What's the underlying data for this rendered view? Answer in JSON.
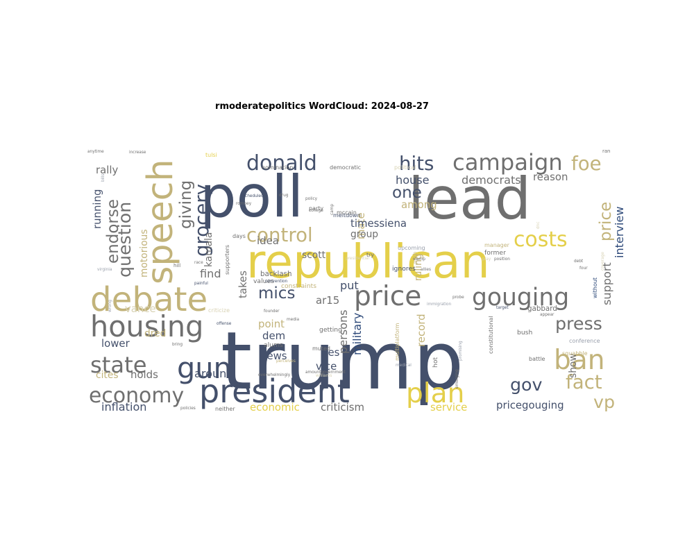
{
  "chart_data": {
    "type": "wordcloud",
    "title": "rmoderatepolitics WordCloud: 2024-08-27",
    "palette": {
      "navy": "#44506b",
      "blue": "#2e4a7a",
      "gray": "#6f6f6f",
      "khaki": "#c2b37a",
      "yellow": "#e4cf4a",
      "pale": "#d8d2b4",
      "light": "#9aa0ac"
    },
    "words": [
      {
        "text": "trump",
        "weight": 100,
        "color": "navy"
      },
      {
        "text": "poll",
        "weight": 72,
        "color": "navy"
      },
      {
        "text": "lead",
        "weight": 72,
        "color": "gray"
      },
      {
        "text": "republican",
        "weight": 58,
        "color": "yellow"
      },
      {
        "text": "speech",
        "weight": 44,
        "color": "khaki"
      },
      {
        "text": "debate",
        "weight": 42,
        "color": "khaki"
      },
      {
        "text": "president",
        "weight": 40,
        "color": "navy"
      },
      {
        "text": "housing",
        "weight": 36,
        "color": "gray"
      },
      {
        "text": "gun",
        "weight": 36,
        "color": "navy"
      },
      {
        "text": "price",
        "weight": 34,
        "color": "gray"
      },
      {
        "text": "plan",
        "weight": 34,
        "color": "yellow"
      },
      {
        "text": "ban",
        "weight": 34,
        "color": "khaki"
      },
      {
        "text": "gouging",
        "weight": 30,
        "color": "gray"
      },
      {
        "text": "campaign",
        "weight": 28,
        "color": "gray"
      },
      {
        "text": "state",
        "weight": 28,
        "color": "gray"
      },
      {
        "text": "economy",
        "weight": 26,
        "color": "gray"
      },
      {
        "text": "donald",
        "weight": 26,
        "color": "navy"
      },
      {
        "text": "costs",
        "weight": 26,
        "color": "yellow"
      },
      {
        "text": "control",
        "weight": 24,
        "color": "khaki"
      },
      {
        "text": "foe",
        "weight": 24,
        "color": "khaki"
      },
      {
        "text": "hits",
        "weight": 24,
        "color": "navy"
      },
      {
        "text": "fact",
        "weight": 24,
        "color": "khaki"
      },
      {
        "text": "grocery",
        "weight": 24,
        "color": "navy"
      },
      {
        "text": "question",
        "weight": 22,
        "color": "gray"
      },
      {
        "text": "gov",
        "weight": 22,
        "color": "navy"
      },
      {
        "text": "press",
        "weight": 22,
        "color": "gray"
      },
      {
        "text": "vp",
        "weight": 22,
        "color": "khaki"
      },
      {
        "text": "price",
        "weight": 20,
        "color": "khaki"
      },
      {
        "text": "endorse",
        "weight": 20,
        "color": "gray"
      },
      {
        "text": "giving",
        "weight": 20,
        "color": "gray"
      },
      {
        "text": "one",
        "weight": 20,
        "color": "navy"
      },
      {
        "text": "mics",
        "weight": 20,
        "color": "navy"
      },
      {
        "text": "interview",
        "weight": 14,
        "color": "blue"
      },
      {
        "text": "support",
        "weight": 14,
        "color": "gray"
      },
      {
        "text": "house",
        "weight": 14,
        "color": "navy"
      },
      {
        "text": "democrats",
        "weight": 14,
        "color": "gray"
      },
      {
        "text": "reason",
        "weight": 13,
        "color": "gray"
      },
      {
        "text": "among",
        "weight": 13,
        "color": "khaki"
      },
      {
        "text": "mate",
        "weight": 13,
        "color": "khaki"
      },
      {
        "text": "timessiena",
        "weight": 13,
        "color": "navy"
      },
      {
        "text": "idea",
        "weight": 13,
        "color": "gray"
      },
      {
        "text": "scott",
        "weight": 12,
        "color": "gray"
      },
      {
        "text": "group",
        "weight": 12,
        "color": "gray"
      },
      {
        "text": "put",
        "weight": 14,
        "color": "navy"
      },
      {
        "text": "ar15",
        "weight": 13,
        "color": "gray"
      },
      {
        "text": "persons",
        "weight": 14,
        "color": "gray"
      },
      {
        "text": "military",
        "weight": 14,
        "color": "blue"
      },
      {
        "text": "record",
        "weight": 13,
        "color": "khaki"
      },
      {
        "text": "ruling",
        "weight": 12,
        "color": "khaki"
      },
      {
        "text": "rally",
        "weight": 13,
        "color": "gray"
      },
      {
        "text": "running",
        "weight": 13,
        "color": "navy"
      },
      {
        "text": "motorious",
        "weight": 12,
        "color": "khaki"
      },
      {
        "text": "kamala",
        "weight": 12,
        "color": "gray"
      },
      {
        "text": "find",
        "weight": 14,
        "color": "gray"
      },
      {
        "text": "takes",
        "weight": 13,
        "color": "gray"
      },
      {
        "text": "vance",
        "weight": 13,
        "color": "pale"
      },
      {
        "text": "dred",
        "weight": 12,
        "color": "khaki"
      },
      {
        "text": "lower",
        "weight": 13,
        "color": "navy"
      },
      {
        "text": "holds",
        "weight": 13,
        "color": "gray"
      },
      {
        "text": "cites",
        "weight": 12,
        "color": "khaki"
      },
      {
        "text": "inflation",
        "weight": 14,
        "color": "navy"
      },
      {
        "text": "around",
        "weight": 14,
        "color": "navy"
      },
      {
        "text": "news",
        "weight": 13,
        "color": "navy"
      },
      {
        "text": "dem",
        "weight": 13,
        "color": "navy"
      },
      {
        "text": "point",
        "weight": 13,
        "color": "khaki"
      },
      {
        "text": "hes",
        "weight": 13,
        "color": "navy"
      },
      {
        "text": "vice",
        "weight": 13,
        "color": "navy"
      },
      {
        "text": "economic",
        "weight": 13,
        "color": "yellow"
      },
      {
        "text": "criticism",
        "weight": 13,
        "color": "gray"
      },
      {
        "text": "service",
        "weight": 13,
        "color": "yellow"
      },
      {
        "text": "pricegouging",
        "weight": 13,
        "color": "navy"
      },
      {
        "text": "show",
        "weight": 12,
        "color": "gray"
      },
      {
        "text": "gabbard",
        "weight": 9,
        "color": "gray"
      },
      {
        "text": "conference",
        "weight": 7,
        "color": "light"
      },
      {
        "text": "squabble",
        "weight": 7,
        "color": "khaki"
      },
      {
        "text": "battle",
        "weight": 7,
        "color": "gray"
      },
      {
        "text": "bush",
        "weight": 8,
        "color": "gray"
      },
      {
        "text": "hot",
        "weight": 8,
        "color": "gray"
      },
      {
        "text": "constitutional",
        "weight": 7,
        "color": "gray"
      },
      {
        "text": "multiplatform",
        "weight": 7,
        "color": "khaki"
      },
      {
        "text": "constraints",
        "weight": 8,
        "color": "khaki"
      },
      {
        "text": "backlash",
        "weight": 9,
        "color": "gray"
      },
      {
        "text": "values",
        "weight": 8,
        "color": "gray"
      },
      {
        "text": "muted",
        "weight": 7,
        "color": "gray"
      },
      {
        "text": "getting",
        "weight": 8,
        "color": "gray"
      },
      {
        "text": "alums",
        "weight": 8,
        "color": "gray"
      },
      {
        "text": "neither",
        "weight": 7,
        "color": "gray"
      },
      {
        "text": "upcoming",
        "weight": 7,
        "color": "light"
      },
      {
        "text": "former",
        "weight": 8,
        "color": "gray"
      },
      {
        "text": "manager",
        "weight": 7,
        "color": "khaki"
      },
      {
        "text": "ignores",
        "weight": 8,
        "color": "navy"
      },
      {
        "text": "meltdown",
        "weight": 7,
        "color": "navy"
      },
      {
        "text": "mccain",
        "weight": 7,
        "color": "gray"
      },
      {
        "text": "party",
        "weight": 7,
        "color": "gray"
      },
      {
        "text": "nomination",
        "weight": 7,
        "color": "gray"
      },
      {
        "text": "democratic",
        "weight": 7,
        "color": "gray"
      },
      {
        "text": "political",
        "weight": 7,
        "color": "pale"
      },
      {
        "text": "tulsi",
        "weight": 7,
        "color": "yellow"
      },
      {
        "text": "try",
        "weight": 7,
        "color": "gray"
      },
      {
        "text": "days",
        "weight": 7,
        "color": "gray"
      },
      {
        "text": "supporters",
        "weight": 7,
        "color": "gray"
      },
      {
        "text": "without",
        "weight": 7,
        "color": "blue"
      },
      {
        "text": "criticize",
        "weight": 7,
        "color": "pale"
      },
      {
        "text": "anytime",
        "weight": 5,
        "color": "gray"
      },
      {
        "text": "increase",
        "weight": 5,
        "color": "gray"
      },
      {
        "text": "bills",
        "weight": 5,
        "color": "light"
      },
      {
        "text": "ran",
        "weight": 6,
        "color": "gray"
      },
      {
        "text": "pitch",
        "weight": 6,
        "color": "khaki"
      },
      {
        "text": "debt",
        "weight": 5,
        "color": "gray"
      },
      {
        "text": "four",
        "weight": 5,
        "color": "gray"
      },
      {
        "text": "dnc",
        "weight": 5,
        "color": "pale"
      },
      {
        "text": "play",
        "weight": 5,
        "color": "pale"
      },
      {
        "text": "allies",
        "weight": 5,
        "color": "gray"
      },
      {
        "text": "probe",
        "weight": 5,
        "color": "gray"
      },
      {
        "text": "target",
        "weight": 5,
        "color": "navy"
      },
      {
        "text": "appear",
        "weight": 5,
        "color": "gray"
      },
      {
        "text": "medical",
        "weight": 5,
        "color": "light"
      },
      {
        "text": "founder",
        "weight": 5,
        "color": "gray"
      },
      {
        "text": "media",
        "weight": 5,
        "color": "gray"
      },
      {
        "text": "bring",
        "weight": 5,
        "color": "gray"
      },
      {
        "text": "offense",
        "weight": 5,
        "color": "navy"
      },
      {
        "text": "virginia",
        "weight": 5,
        "color": "light"
      },
      {
        "text": "hill",
        "weight": 6,
        "color": "gray"
      },
      {
        "text": "race",
        "weight": 5,
        "color": "gray"
      },
      {
        "text": "painful",
        "weight": 5,
        "color": "navy"
      },
      {
        "text": "convention",
        "weight": 5,
        "color": "navy"
      },
      {
        "text": "romney",
        "weight": 5,
        "color": "gray"
      },
      {
        "text": "policy",
        "weight": 5,
        "color": "gray"
      },
      {
        "text": "college",
        "weight": 5,
        "color": "gray"
      },
      {
        "text": "scheduled",
        "weight": 5,
        "color": "navy"
      },
      {
        "text": "drug",
        "weight": 5,
        "color": "gray"
      },
      {
        "text": "camp",
        "weight": 5,
        "color": "gray"
      },
      {
        "text": "perceives",
        "weight": 5,
        "color": "khaki"
      },
      {
        "text": "williams",
        "weight": 5,
        "color": "pale"
      },
      {
        "text": "overwhelmingly",
        "weight": 5,
        "color": "gray"
      },
      {
        "text": "amountgovernment",
        "weight": 5,
        "color": "gray"
      },
      {
        "text": "policies",
        "weight": 5,
        "color": "gray"
      },
      {
        "text": "wrong",
        "weight": 5,
        "color": "light"
      },
      {
        "text": "emerging",
        "weight": 5,
        "color": "gray"
      },
      {
        "text": "promising",
        "weight": 5,
        "color": "light"
      },
      {
        "text": "immigration",
        "weight": 5,
        "color": "light"
      },
      {
        "text": "position",
        "weight": 5,
        "color": "gray"
      },
      {
        "text": "coverage",
        "weight": 5,
        "color": "pale"
      },
      {
        "text": "presidential",
        "weight": 5,
        "color": "pale"
      },
      {
        "text": "vlamp",
        "weight": 5,
        "color": "gray"
      },
      {
        "text": "announce",
        "weight": 5,
        "color": "navy"
      }
    ]
  }
}
